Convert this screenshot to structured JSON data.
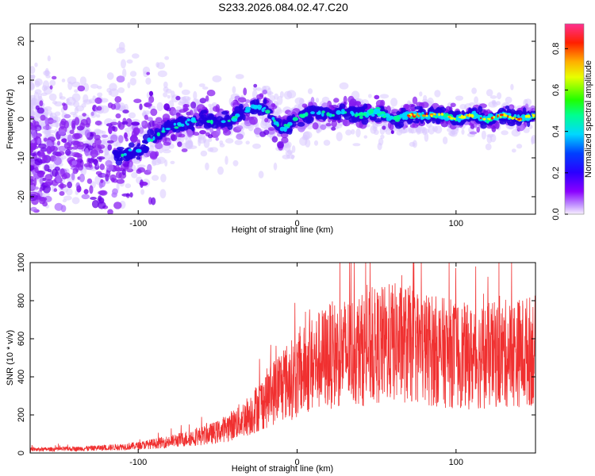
{
  "title": "S233.2026.084.02.47.C20",
  "chart_data": [
    {
      "type": "heatmap",
      "title": "",
      "xlabel": "Height of straight line (km)",
      "ylabel": "Frequency (Hz)",
      "xlim": [
        -168,
        150
      ],
      "ylim": [
        -24.5,
        24.5
      ],
      "xticks": [
        -100,
        0,
        100
      ],
      "yticks": [
        -20,
        -10,
        0,
        10,
        20
      ],
      "xtick_labels": [
        "-100",
        "0",
        "100"
      ],
      "ytick_labels": [
        "-20",
        "-10",
        "0",
        "10",
        "20"
      ],
      "colorbar": {
        "label": "Normalized spectral amplitude",
        "range": [
          0.0,
          0.92
        ],
        "ticks": [
          0.0,
          0.2,
          0.4,
          0.6,
          0.8
        ],
        "tick_labels": [
          "0.0",
          "0.2",
          "0.4",
          "0.6",
          "0.8"
        ],
        "colormap": [
          "#f0e0ff",
          "#8a00ff",
          "#1010ff",
          "#00d0ff",
          "#00ff40",
          "#ffe000",
          "#ff8000",
          "#ff0000",
          "#ff40a0"
        ]
      },
      "ridge": {
        "x": [
          -110,
          -100,
          -90,
          -80,
          -70,
          -60,
          -50,
          -40,
          -30,
          -20,
          -10,
          0,
          10,
          20,
          30,
          40,
          50,
          60,
          70,
          80,
          90,
          100,
          110,
          120,
          130,
          140,
          150
        ],
        "y": [
          -9,
          -8,
          -5,
          -2,
          -1,
          0,
          -1,
          0,
          3,
          3,
          -3,
          0,
          2,
          1,
          2,
          1,
          2,
          0,
          1,
          1,
          1,
          0,
          1,
          0,
          1,
          0,
          1
        ]
      }
    },
    {
      "type": "line",
      "title": "",
      "xlabel": "Height of straight line (km)",
      "ylabel": "SNR (10 * v/v)",
      "xlim": [
        -168,
        150
      ],
      "ylim": [
        0,
        1000
      ],
      "xticks": [
        -100,
        0,
        100
      ],
      "yticks": [
        0,
        200,
        400,
        600,
        800,
        1000
      ],
      "xtick_labels": [
        "-100",
        "0",
        "100"
      ],
      "ytick_labels": [
        "0",
        "200",
        "400",
        "600",
        "800",
        "1000"
      ],
      "color": "#f03030",
      "series": [
        {
          "name": "SNR",
          "x": [
            -168,
            -140,
            -120,
            -100,
            -80,
            -60,
            -50,
            -40,
            -30,
            -20,
            -10,
            0,
            10,
            20,
            30,
            40,
            50,
            60,
            70,
            80,
            90,
            100,
            110,
            120,
            130,
            140,
            150
          ],
          "values": [
            18,
            22,
            28,
            38,
            60,
            90,
            110,
            150,
            200,
            280,
            360,
            400,
            470,
            510,
            530,
            540,
            560,
            580,
            570,
            550,
            530,
            520,
            500,
            510,
            520,
            530,
            540
          ]
        }
      ]
    }
  ]
}
